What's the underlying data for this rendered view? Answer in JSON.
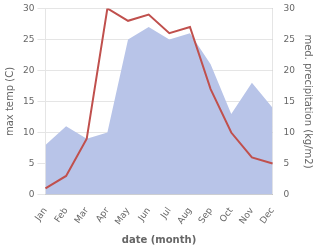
{
  "chart_data": {
    "type": "line",
    "xlabel": "date (month)",
    "ylabel": "max temp (C)",
    "y2label": "med. precipitation (kg/m2)",
    "categories": [
      "Jan",
      "Feb",
      "Mar",
      "Apr",
      "May",
      "Jun",
      "Jul",
      "Aug",
      "Sep",
      "Oct",
      "Nov",
      "Dec"
    ],
    "series": [
      {
        "type": "area",
        "axis": "y2",
        "color": "#b8c4e8",
        "values": [
          8,
          11,
          9,
          10,
          25,
          27,
          25,
          26,
          21,
          13,
          18,
          14
        ]
      },
      {
        "type": "line",
        "color": "#c0504d",
        "values": [
          1,
          3,
          9,
          30,
          28,
          29,
          26,
          27,
          17,
          10,
          6,
          5
        ]
      }
    ],
    "ylim": [
      0,
      30
    ],
    "yticks": [
      0,
      5,
      10,
      15,
      20,
      25,
      30
    ],
    "y2lim": [
      0,
      30
    ],
    "y2ticks": [
      0,
      5,
      10,
      15,
      20,
      25,
      30
    ],
    "grid": true
  }
}
